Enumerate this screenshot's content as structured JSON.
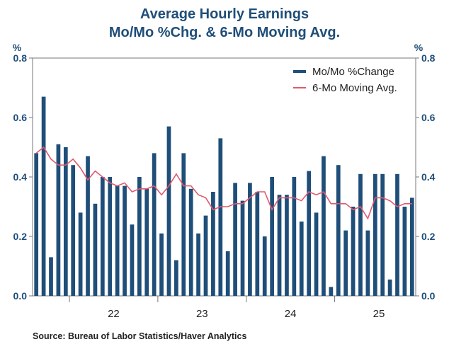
{
  "chart_data": {
    "type": "bar",
    "title": "Average Hourly Earnings",
    "subtitle": "Mo/Mo %Chg. & 6-Mo Moving Avg.",
    "ylabel_left": "%",
    "ylabel_right": "%",
    "ylim": [
      0,
      0.8
    ],
    "yticks": [
      "0.0",
      "0.2",
      "0.4",
      "0.6",
      "0.8"
    ],
    "xtick_labels": [
      "22",
      "23",
      "24",
      "25"
    ],
    "legend_position": "top-right",
    "source": "Source:  Bureau of Labor Statistics/Haver Analytics",
    "x": [
      "2021-08",
      "2021-09",
      "2021-10",
      "2021-11",
      "2021-12",
      "2022-01",
      "2022-02",
      "2022-03",
      "2022-04",
      "2022-05",
      "2022-06",
      "2022-07",
      "2022-08",
      "2022-09",
      "2022-10",
      "2022-11",
      "2022-12",
      "2023-01",
      "2023-02",
      "2023-03",
      "2023-04",
      "2023-05",
      "2023-06",
      "2023-07",
      "2023-08",
      "2023-09",
      "2023-10",
      "2023-11",
      "2023-12",
      "2024-01",
      "2024-02",
      "2024-03",
      "2024-04",
      "2024-05",
      "2024-06",
      "2024-07",
      "2024-08",
      "2024-09",
      "2024-10",
      "2024-11",
      "2024-12",
      "2025-01",
      "2025-02",
      "2025-03",
      "2025-04",
      "2025-05",
      "2025-06",
      "2025-07",
      "2025-08",
      "2025-09",
      "2025-10",
      "2025-11"
    ],
    "series": [
      {
        "name": "Mo/Mo %Change",
        "kind": "bar",
        "color": "#1f4e79",
        "values": [
          0.48,
          0.67,
          0.13,
          0.51,
          0.5,
          0.44,
          0.28,
          0.47,
          0.31,
          0.4,
          0.4,
          0.37,
          0.37,
          0.24,
          0.4,
          0.36,
          0.48,
          0.21,
          0.57,
          0.12,
          0.48,
          0.36,
          0.21,
          0.27,
          0.35,
          0.53,
          0.15,
          0.38,
          0.32,
          0.38,
          0.35,
          0.2,
          0.4,
          0.34,
          0.34,
          0.4,
          0.25,
          0.42,
          0.28,
          0.47,
          0.03,
          0.44,
          0.22,
          0.3,
          0.41,
          0.22,
          0.41,
          0.41,
          0.055,
          0.41,
          0.3,
          0.33
        ]
      },
      {
        "name": "6-Mo Moving Avg.",
        "kind": "line",
        "color": "#e05a6d",
        "values": [
          0.48,
          0.5,
          0.46,
          0.44,
          0.44,
          0.46,
          0.43,
          0.39,
          0.42,
          0.4,
          0.38,
          0.37,
          0.38,
          0.35,
          0.36,
          0.36,
          0.37,
          0.34,
          0.37,
          0.41,
          0.37,
          0.37,
          0.34,
          0.33,
          0.29,
          0.3,
          0.3,
          0.31,
          0.31,
          0.33,
          0.35,
          0.35,
          0.29,
          0.33,
          0.33,
          0.33,
          0.32,
          0.35,
          0.34,
          0.35,
          0.31,
          0.31,
          0.31,
          0.29,
          0.3,
          0.26,
          0.33,
          0.33,
          0.32,
          0.3,
          0.31,
          0.31
        ]
      }
    ]
  }
}
